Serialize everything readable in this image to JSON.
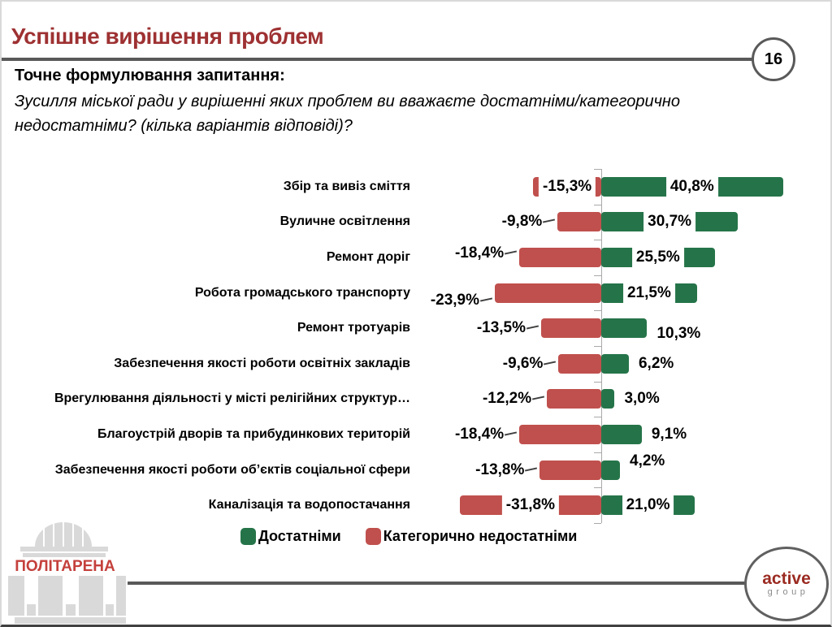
{
  "header": {
    "title": "Успішне вирішення проблем",
    "page_number": "16"
  },
  "question": {
    "label": "Точне формулювання запитання:",
    "lines": [
      "Зусилля міської ради у вирішенні яких проблем ви вважаєте достатніми/категорично",
      "недостатніми? (кілька варіантів відповіді)?"
    ]
  },
  "chart_data": {
    "type": "bar",
    "orientation": "horizontal_diverging",
    "title": "",
    "xlabel": "",
    "ylabel": "",
    "xlim": [
      -35,
      45
    ],
    "grid": false,
    "legend_position": "bottom",
    "categories": [
      "Збір та вивіз сміття",
      "Вуличне освітлення",
      "Ремонт доріг",
      "Робота громадського транспорту",
      "Ремонт тротуарів",
      "Забезпечення якості роботи освітніх закладів",
      "Врегулювання діяльності у місті релігійних структур…",
      "Благоустрій дворів та прибудинкових територій",
      "Забезпечення якості роботи об’єктів соціальної сфери",
      "Каналізація та водопостачання"
    ],
    "series": [
      {
        "name": "Достатніми",
        "color": "#257449",
        "side": "positive",
        "values": [
          40.8,
          30.7,
          25.5,
          21.5,
          10.3,
          6.2,
          3.0,
          9.1,
          4.2,
          21.0
        ],
        "labels": [
          "40,8%",
          "30,7%",
          "25,5%",
          "21,5%",
          "10,3%",
          "6,2%",
          "3,0%",
          "9,1%",
          "4,2%",
          "21,0%"
        ],
        "label_placement": [
          "inside",
          "inside",
          "inside",
          "inside",
          "outside",
          "outside",
          "outside",
          "outside",
          "outside",
          "inside"
        ],
        "label_dy": [
          0,
          0,
          0,
          0,
          7,
          0,
          0,
          0,
          -11,
          0
        ]
      },
      {
        "name": "Категорично недостатніми",
        "color": "#C0504D",
        "side": "negative",
        "values": [
          -15.3,
          -9.8,
          -18.4,
          -23.9,
          -13.5,
          -9.6,
          -12.2,
          -18.4,
          -13.8,
          -31.8
        ],
        "labels": [
          "-15,3%",
          "-9,8%",
          "-18,4%",
          "-23,9%",
          "-13,5%",
          "-9,6%",
          "-12,2%",
          "-18,4%",
          "-13,8%",
          "-31,8%"
        ],
        "label_placement": [
          "inside",
          "outside",
          "outside",
          "outside",
          "outside",
          "outside",
          "outside",
          "outside",
          "outside",
          "inside"
        ],
        "label_dy": [
          0,
          0,
          -5,
          9,
          0,
          0,
          0,
          0,
          0,
          0
        ]
      }
    ]
  },
  "footer": {
    "politarena": "ПОЛІТАРЕНА",
    "active_line1": "active",
    "active_line2": "group"
  },
  "colors": {
    "title": "#9E3132",
    "rule": "#595959",
    "axis": "#A9A9A9",
    "bar_green": "#257449",
    "bar_red": "#C0504D"
  }
}
